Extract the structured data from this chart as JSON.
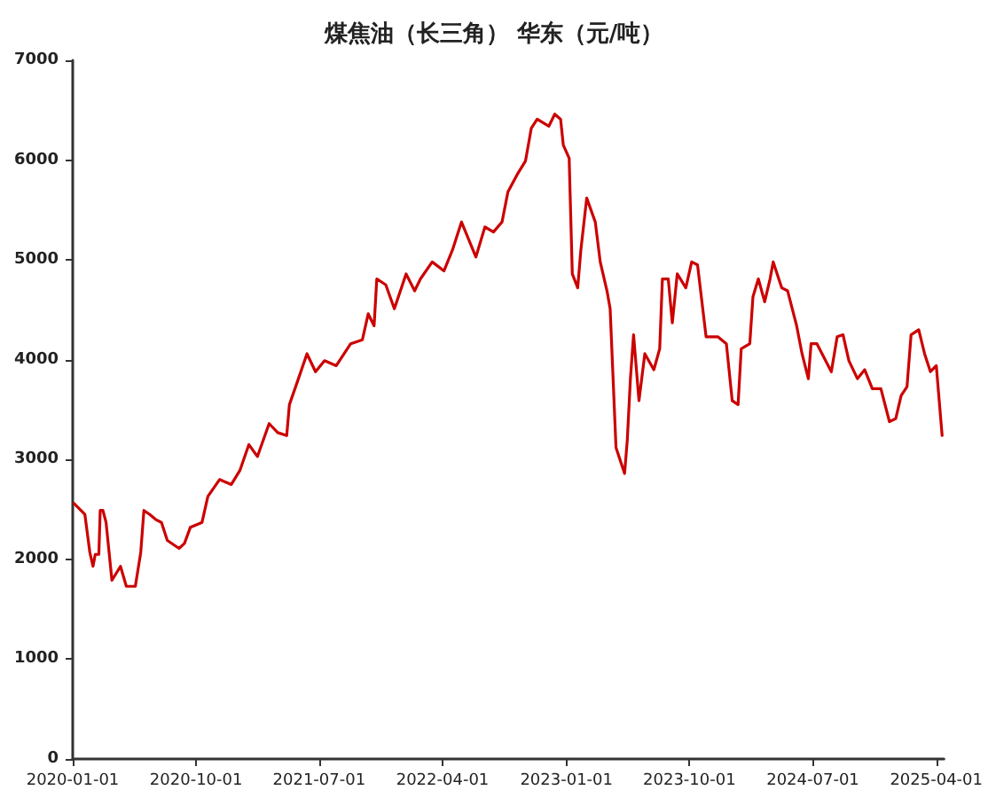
{
  "chart_data": {
    "type": "line",
    "title": "煤焦油（长三角） 华东（元/吨）",
    "x": [
      "2020-01-04",
      "2020-01-28",
      "2020-02-08",
      "2020-02-15",
      "2020-02-20",
      "2020-02-28",
      "2020-03-02",
      "2020-03-08",
      "2020-03-15",
      "2020-03-28",
      "2020-04-16",
      "2020-04-29",
      "2020-05-19",
      "2020-05-31",
      "2020-06-07",
      "2020-06-20",
      "2020-07-03",
      "2020-07-16",
      "2020-07-29",
      "2020-08-24",
      "2020-09-05",
      "2020-09-18",
      "2020-10-14",
      "2020-10-27",
      "2020-11-22",
      "2020-12-18",
      "2021-01-06",
      "2021-01-26",
      "2021-02-14",
      "2021-03-12",
      "2021-03-31",
      "2021-04-20",
      "2021-04-26",
      "2021-05-16",
      "2021-06-04",
      "2021-06-23",
      "2021-07-13",
      "2021-08-08",
      "2021-09-09",
      "2021-10-05",
      "2021-10-18",
      "2021-10-31",
      "2021-11-06",
      "2021-11-26",
      "2021-12-15",
      "2022-01-10",
      "2022-01-29",
      "2022-02-11",
      "2022-03-09",
      "2022-04-04",
      "2022-04-23",
      "2022-05-13",
      "2022-06-14",
      "2022-07-04",
      "2022-07-23",
      "2022-08-11",
      "2022-08-24",
      "2022-09-13",
      "2022-10-02",
      "2022-10-15",
      "2022-10-28",
      "2022-11-23",
      "2022-12-06",
      "2022-12-19",
      "2022-12-25",
      "2023-01-07",
      "2023-01-14",
      "2023-01-26",
      "2023-02-02",
      "2023-02-15",
      "2023-03-06",
      "2023-03-17",
      "2023-04-01",
      "2023-04-08",
      "2023-04-21",
      "2023-05-10",
      "2023-05-16",
      "2023-05-23",
      "2023-05-30",
      "2023-06-11",
      "2023-06-24",
      "2023-07-14",
      "2023-07-27",
      "2023-08-02",
      "2023-08-15",
      "2023-08-24",
      "2023-09-04",
      "2023-09-23",
      "2023-10-06",
      "2023-10-19",
      "2023-11-07",
      "2023-12-03",
      "2023-12-22",
      "2024-01-04",
      "2024-01-17",
      "2024-01-24",
      "2024-02-12",
      "2024-02-19",
      "2024-03-02",
      "2024-03-16",
      "2024-03-28",
      "2024-04-04",
      "2024-04-23",
      "2024-05-06",
      "2024-05-26",
      "2024-06-07",
      "2024-06-21",
      "2024-06-27",
      "2024-07-10",
      "2024-08-11",
      "2024-08-24",
      "2024-09-06",
      "2024-09-19",
      "2024-10-08",
      "2024-10-24",
      "2024-11-10",
      "2024-11-29",
      "2024-12-18",
      "2025-01-01",
      "2025-01-13",
      "2025-01-26",
      "2025-02-04",
      "2025-02-21",
      "2025-03-06",
      "2025-03-19",
      "2025-04-01",
      "2025-04-14"
    ],
    "series": [
      {
        "color": "#cc0000",
        "values": [
          2560,
          2450,
          2070,
          1930,
          2050,
          2050,
          2490,
          2490,
          2370,
          1790,
          1930,
          1730,
          1730,
          2070,
          2490,
          2450,
          2400,
          2370,
          2190,
          2110,
          2160,
          2320,
          2370,
          2630,
          2800,
          2750,
          2890,
          3150,
          3030,
          3360,
          3270,
          3240,
          3550,
          3810,
          4060,
          3880,
          3990,
          3940,
          4160,
          4200,
          4460,
          4340,
          4810,
          4750,
          4510,
          4860,
          4690,
          4810,
          4980,
          4890,
          5100,
          5380,
          5030,
          5330,
          5280,
          5380,
          5680,
          5850,
          5990,
          6320,
          6410,
          6340,
          6460,
          6410,
          6150,
          6020,
          4860,
          4720,
          5100,
          5620,
          5380,
          4980,
          4690,
          4510,
          3120,
          2860,
          3190,
          3810,
          4250,
          3590,
          4060,
          3900,
          4110,
          4810,
          4810,
          4370,
          4860,
          4720,
          4980,
          4950,
          4230,
          4230,
          4160,
          3590,
          3550,
          4110,
          4160,
          4630,
          4810,
          4580,
          4810,
          4980,
          4720,
          4690,
          4340,
          4060,
          3810,
          4160,
          4160,
          3880,
          4230,
          4250,
          3990,
          3810,
          3900,
          3710,
          3710,
          3380,
          3410,
          3640,
          3730,
          4250,
          4300,
          4060,
          3880,
          3940,
          3240
        ]
      }
    ],
    "xlim": [
      "2020-01-01",
      "2025-04-18"
    ],
    "xticks": [
      "2020-01-01",
      "2020-10-01",
      "2021-07-01",
      "2022-04-01",
      "2023-01-01",
      "2023-10-01",
      "2024-07-01",
      "2025-04-01"
    ],
    "ylim": [
      0,
      7000
    ],
    "yticks": [
      0,
      1000,
      2000,
      3000,
      4000,
      5000,
      6000,
      7000
    ],
    "grid": false,
    "marker": "none",
    "line_style": "solid"
  }
}
